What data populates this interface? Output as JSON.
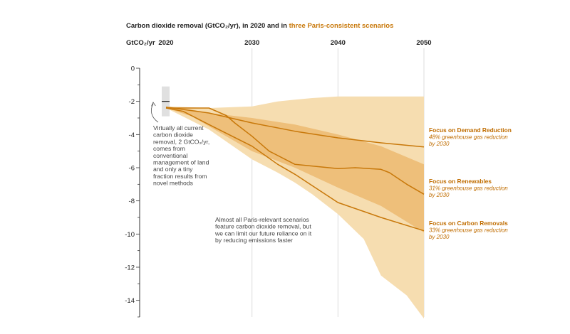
{
  "chart_data": {
    "type": "area",
    "title_prefix": "Carbon dioxide removal (GtCO₂/yr), in 2020 and in ",
    "title_highlight": "three Paris-consistent scenarios",
    "ylabel": "GtCO₂/yr",
    "xlim": [
      2020,
      2050
    ],
    "ylim": [
      -15,
      0
    ],
    "x_ticks": [
      2020,
      2030,
      2040,
      2050
    ],
    "y_ticks": [
      0,
      -2,
      -4,
      -6,
      -8,
      -10,
      -12,
      -14
    ],
    "grid": "vertical lines at 2030, 2040, 2050",
    "colors": {
      "outer_band": "#f6ddb0",
      "inner_band": "#eebf7a",
      "line": "#c8780a",
      "label": "#c06d00",
      "current_bar": "#e0e0e0"
    },
    "current_2020": {
      "year": 2020,
      "value": -2,
      "range_low": -2.9,
      "range_high": -1.1
    },
    "bands": {
      "outer": {
        "x": [
          2020,
          2025,
          2030,
          2033,
          2035,
          2037,
          2040,
          2043,
          2045,
          2048,
          2050
        ],
        "upper": [
          -2.3,
          -2.4,
          -2.3,
          -2.0,
          -1.9,
          -1.8,
          -1.7,
          -1.7,
          -1.7,
          -1.7,
          -1.7
        ],
        "lower": [
          -2.4,
          -3.7,
          -5.5,
          -6.3,
          -6.9,
          -7.6,
          -8.8,
          -10.3,
          -12.5,
          -13.7,
          -15.1
        ]
      },
      "inner": {
        "x": [
          2020,
          2023,
          2025,
          2030,
          2035,
          2040,
          2045,
          2050
        ],
        "upper": [
          -2.3,
          -2.5,
          -2.7,
          -3.0,
          -3.4,
          -4.0,
          -4.7,
          -5.8
        ],
        "lower": [
          -2.4,
          -2.9,
          -3.5,
          -5.0,
          -6.0,
          -7.2,
          -8.3,
          -9.9
        ]
      }
    },
    "series": [
      {
        "name": "Focus on Demand Reduction",
        "subtitle": "48% greenhouse gas reduction by 2030",
        "x": [
          2020,
          2025,
          2030,
          2035,
          2040,
          2045,
          2050
        ],
        "values": [
          -2.35,
          -2.7,
          -3.3,
          -3.8,
          -4.2,
          -4.5,
          -4.75
        ]
      },
      {
        "name": "Focus on Renewables",
        "subtitle": "31% greenhouse gas reduction by 2030",
        "x": [
          2020,
          2025,
          2027,
          2028,
          2030,
          2032,
          2035,
          2040,
          2042,
          2045,
          2046,
          2048,
          2050
        ],
        "values": [
          -2.4,
          -2.4,
          -2.85,
          -3.3,
          -4.1,
          -5.0,
          -5.8,
          -6.05,
          -6.0,
          -6.1,
          -6.3,
          -7.0,
          -7.6
        ]
      },
      {
        "name": "Focus on Carbon Removals",
        "subtitle": "33% greenhouse gas reduction by 2030",
        "x": [
          2020,
          2022,
          2025,
          2030,
          2033,
          2035,
          2040,
          2045,
          2050
        ],
        "values": [
          -2.4,
          -2.6,
          -3.4,
          -4.7,
          -5.8,
          -6.4,
          -8.1,
          -9.0,
          -9.8
        ]
      }
    ],
    "annotations": {
      "current": [
        "Virtually all current",
        "carbon dioxide",
        "removal, 2 GtCO₂/yr,",
        "comes from",
        "conventional",
        "management of land",
        "and only a tiny",
        "fraction results from",
        "novel methods"
      ],
      "middle": [
        "Almost all Paris-relevant scenarios",
        "feature carbon dioxide removal, but",
        "we can limit our future reliance on it",
        "by reducing emissions faster"
      ]
    }
  }
}
